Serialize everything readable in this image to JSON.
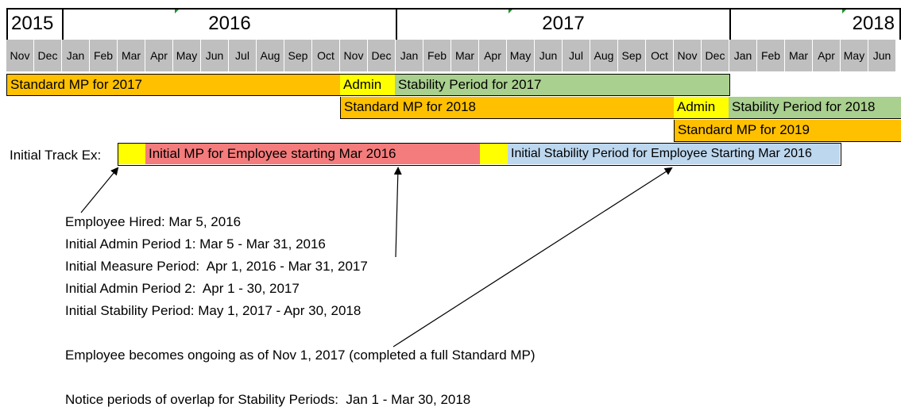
{
  "years": [
    "2015",
    "2016",
    "2017",
    "2018"
  ],
  "months": [
    "Nov",
    "Dec",
    "Jan",
    "Feb",
    "Mar",
    "Apr",
    "May",
    "Jun",
    "Jul",
    "Aug",
    "Sep",
    "Oct",
    "Nov",
    "Dec",
    "Jan",
    "Feb",
    "Mar",
    "Apr",
    "May",
    "Jun",
    "Jul",
    "Aug",
    "Sep",
    "Oct",
    "Nov",
    "Dec",
    "Jan",
    "Feb",
    "Mar",
    "Apr",
    "May",
    "Jun"
  ],
  "rows": {
    "standard_2017": "Standard MP for 2017",
    "admin_2017": "Admin",
    "stability_2017": "Stability Period for 2017",
    "standard_2018": "Standard MP for 2018",
    "admin_2018": "Admin",
    "stability_2018": "Stability Period for 2018",
    "standard_2019": "Standard MP for 2019"
  },
  "initial_track": {
    "label": "Initial Track Ex:",
    "measure_label": "Initial MP for Employee starting Mar 2016",
    "stability_label": "Initial Stability Period for Employee Starting Mar 2016"
  },
  "notes": [
    "Employee Hired: Mar 5, 2016",
    "Initial Admin Period 1: Mar 5 - Mar 31, 2016",
    "Initial Measure Period:  Apr 1, 2016 - Mar 31, 2017",
    "Initial Admin Period 2:  Apr 1 - 30, 2017",
    "Initial Stability Period: May 1, 2017 - Apr 30, 2018"
  ],
  "ongoing_note": "Employee becomes ongoing as of Nov 1, 2017 (completed a full Standard MP)",
  "overlap_note": "Notice periods of overlap for Stability Periods:  Jan 1 - Mar 30, 2018",
  "colors": {
    "standard": "#ffc000",
    "admin": "#ffff00",
    "stability": "#a9d08e",
    "initial_measure": "#f47c7c",
    "initial_stability": "#bdd7ee",
    "month_header": "#bfbfbf"
  }
}
